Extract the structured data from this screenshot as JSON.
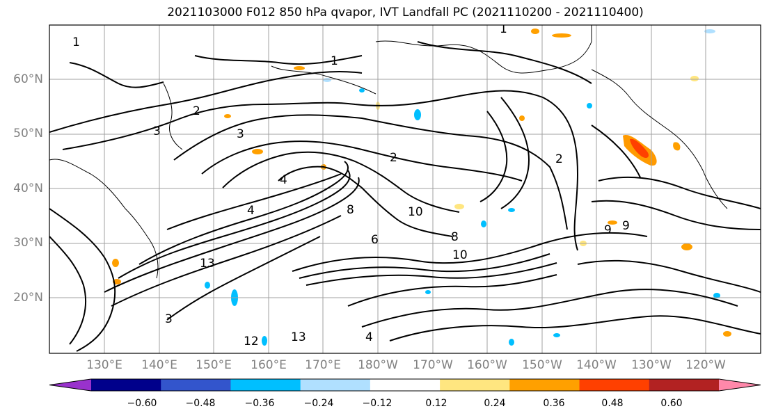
{
  "title": "2021103000 F012 850 hPa qvapor, IVT Landfall PC (2021110200 - 2021110400)",
  "map": {
    "lat_labels": [
      "60°N",
      "50°N",
      "40°N",
      "30°N",
      "20°N"
    ],
    "lon_labels": [
      "130°E",
      "140°E",
      "150°E",
      "160°E",
      "170°E",
      "180°W",
      "170°W",
      "160°W",
      "150°W",
      "140°W",
      "130°W",
      "120°W"
    ],
    "contour_labels": [
      "1",
      "1",
      "1",
      "2",
      "3",
      "3",
      "2",
      "4",
      "2",
      "4",
      "8",
      "10",
      "6",
      "8",
      "10",
      "13",
      "3",
      "12",
      "13",
      "9",
      "4",
      "9"
    ]
  },
  "colorbar": {
    "colors": [
      "#9932cc",
      "#00008b",
      "#3355cc",
      "#00bfff",
      "#b0e0ff",
      "#ffffff",
      "#ffe680",
      "#ffa000",
      "#ff4000",
      "#b22222",
      "#ff88aa"
    ],
    "tick_labels": [
      "−0.60",
      "−0.48",
      "−0.36",
      "−0.24",
      "−0.12",
      "0.12",
      "0.24",
      "0.36",
      "0.48",
      "0.60"
    ]
  }
}
